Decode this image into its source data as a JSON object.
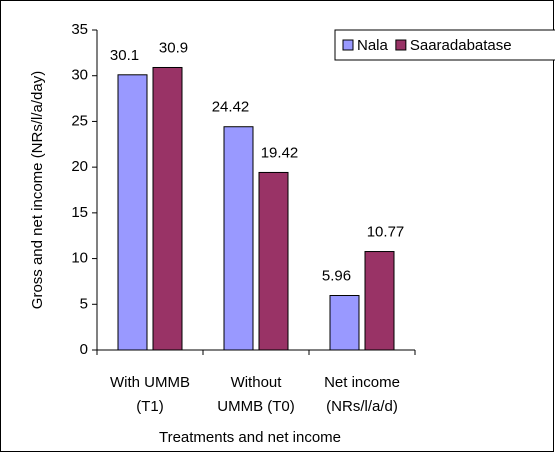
{
  "chart_data": {
    "type": "bar",
    "y_label": "Gross and net income (NRs/l/a/day)",
    "x_label": "Treatments and net income",
    "categories": [
      [
        "With UMMB",
        "(T1)"
      ],
      [
        "Without",
        "UMMB (T0)"
      ],
      [
        "Net income",
        "(NRs/l/a/d)"
      ]
    ],
    "series": [
      {
        "name": "Nala",
        "color": "#9999ff",
        "values": [
          30.1,
          24.42,
          5.96
        ]
      },
      {
        "name": "Saaradabatase",
        "color": "#993366",
        "values": [
          30.9,
          19.42,
          10.77
        ]
      }
    ],
    "ylim": [
      0,
      35
    ],
    "yticks": [
      0,
      5,
      10,
      15,
      20,
      25,
      30,
      35
    ],
    "legend": "top-right"
  }
}
